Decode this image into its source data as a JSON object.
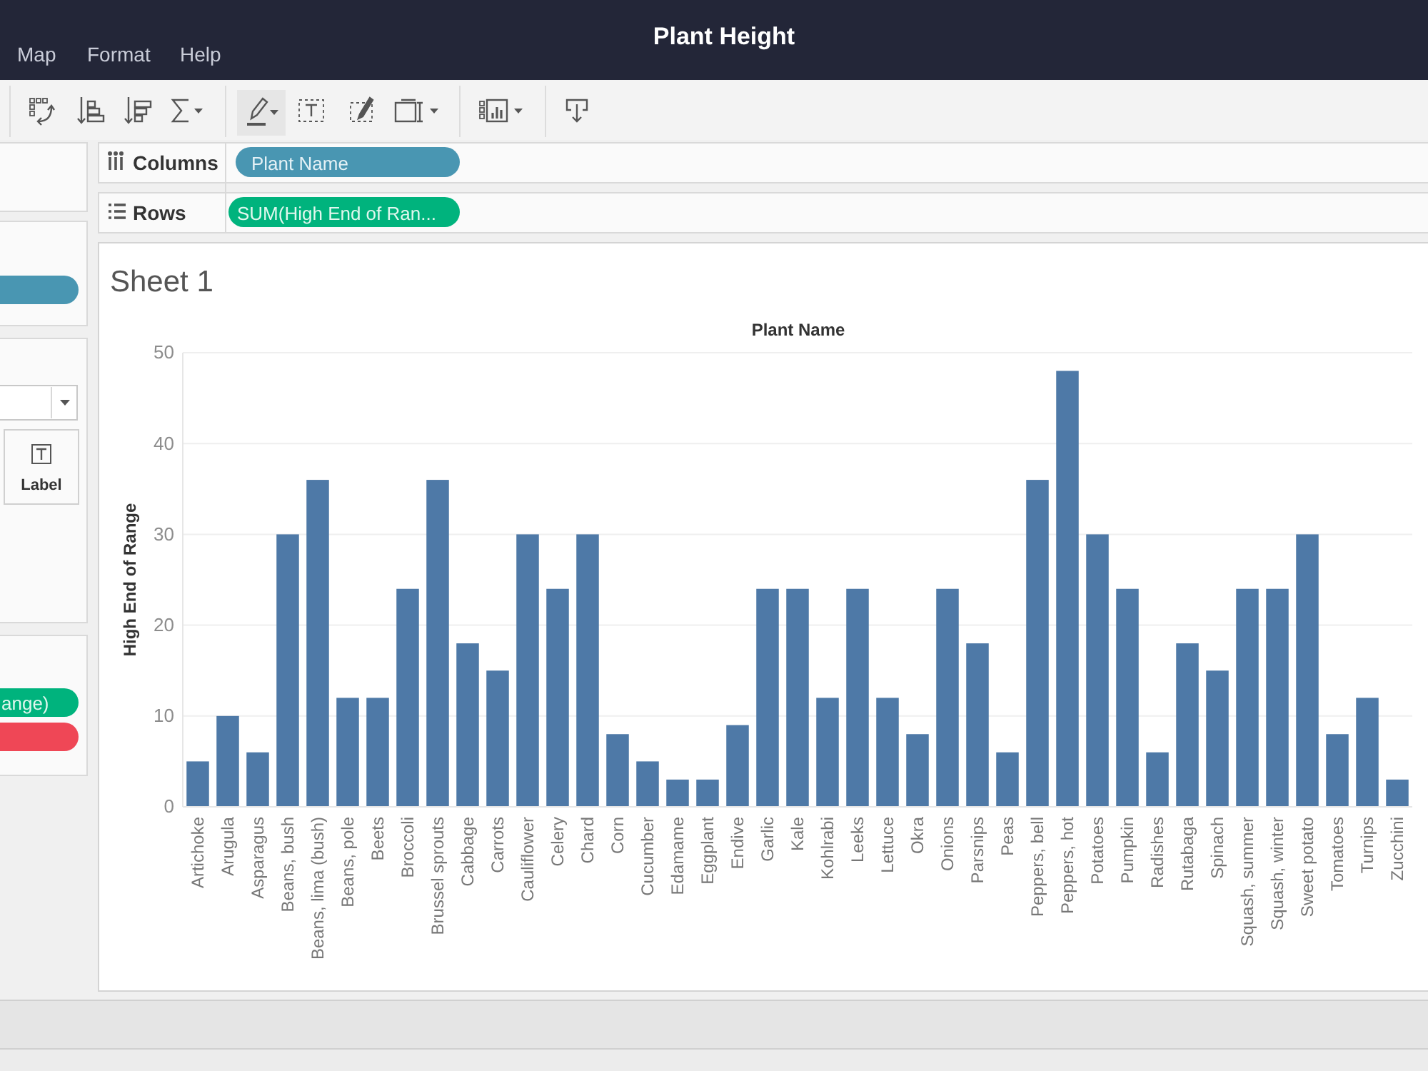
{
  "chart_data": {
    "type": "bar",
    "title": "Plant Height",
    "subtitle": "Sheet 1",
    "xlabel": "Plant Name",
    "ylabel": "High End of Range",
    "categories": [
      "Artichoke",
      "Arugula",
      "Asparagus",
      "Beans, bush",
      "Beans, lima (bush)",
      "Beans, pole",
      "Beets",
      "Broccoli",
      "Brussel sprouts",
      "Cabbage",
      "Carrots",
      "Cauliflower",
      "Celery",
      "Chard",
      "Corn",
      "Cucumber",
      "Edamame",
      "Eggplant",
      "Endive",
      "Garlic",
      "Kale",
      "Kohlrabi",
      "Leeks",
      "Lettuce",
      "Okra",
      "Onions",
      "Parsnips",
      "Peas",
      "Peppers, bell",
      "Peppers, hot",
      "Potatoes",
      "Pumpkin",
      "Radishes",
      "Rutabaga",
      "Spinach",
      "Squash, summer",
      "Squash, winter",
      "Sweet potato",
      "Tomatoes",
      "Turnips",
      "Zucchini"
    ],
    "values": [
      5,
      10,
      6,
      30,
      36,
      12,
      12,
      24,
      36,
      18,
      15,
      30,
      24,
      30,
      8,
      5,
      3,
      3,
      9,
      24,
      24,
      12,
      24,
      12,
      8,
      24,
      18,
      6,
      36,
      48,
      30,
      24,
      6,
      18,
      15,
      24,
      24,
      30,
      8,
      12,
      3
    ],
    "color": "#4e79a7",
    "ylim": [
      0,
      50
    ],
    "yticks": [
      0,
      10,
      20,
      30,
      40,
      50
    ],
    "grid": "y",
    "annotations": [
      "Map",
      "Format",
      "Help",
      "Columns",
      "Plant Name",
      "Rows",
      "SUM(High End of Ran...",
      "Label",
      "ange)"
    ]
  }
}
